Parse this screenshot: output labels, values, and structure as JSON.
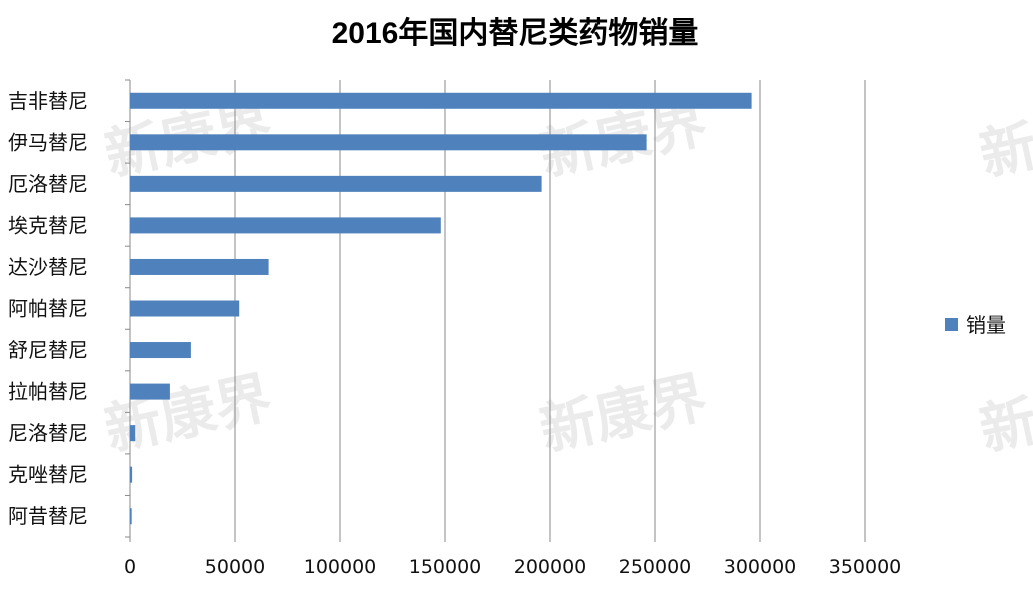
{
  "chart_data": {
    "type": "bar",
    "orientation": "horizontal",
    "title": "2016年国内替尼类药物销量",
    "xlabel": "",
    "ylabel": "",
    "categories": [
      "吉非替尼",
      "伊马替尼",
      "厄洛替尼",
      "埃克替尼",
      "达沙替尼",
      "阿帕替尼",
      "舒尼替尼",
      "拉帕替尼",
      "尼洛替尼",
      "克唑替尼",
      "阿昔替尼"
    ],
    "series": [
      {
        "name": "销量",
        "color": "#4f81bd",
        "values": [
          296000,
          246000,
          196000,
          148000,
          66000,
          52000,
          29000,
          19000,
          2500,
          1000,
          800
        ]
      }
    ],
    "xlim": [
      0,
      350000
    ],
    "xticks": [
      "0",
      "50000",
      "100000",
      "150000",
      "200000",
      "250000",
      "300000",
      "350000"
    ],
    "grid": true,
    "legend_position": "right"
  },
  "watermark": "新康界"
}
